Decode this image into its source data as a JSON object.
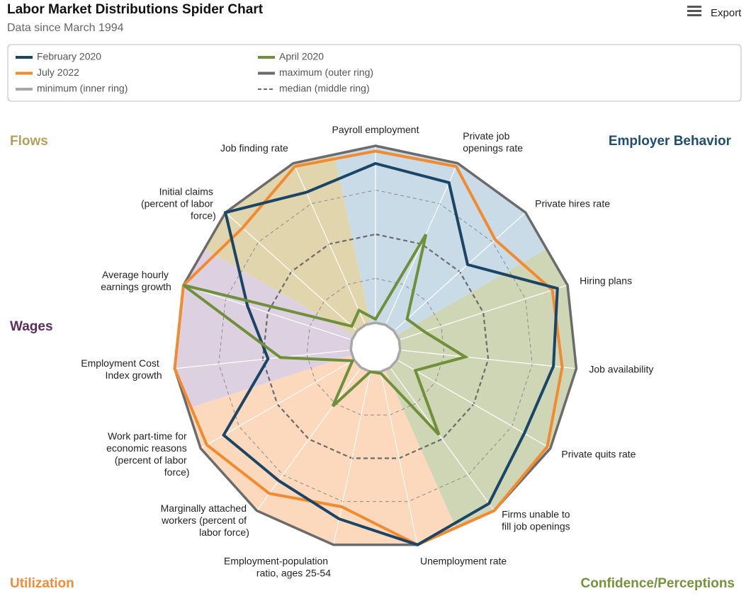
{
  "chart_data": {
    "type": "radar",
    "title": "Labor Market Distributions Spider Chart",
    "subtitle": "Data since March 1994",
    "export_label": "Export",
    "categories": [
      "Payroll employment",
      "Private job openings rate",
      "Private hires rate",
      "Hiring plans",
      "Job availability",
      "Private quits rate",
      "Firms unable to fill job openings",
      "Unemployment rate",
      "Employment-population ratio, ages 25-54",
      "Marginally attached workers (percent of labor force)",
      "Work part-time for economic reasons (percent of labor force)",
      "Employment Cost Index growth",
      "Average hourly earnings growth",
      "Initial claims (percent of labor force)",
      "Job finding rate"
    ],
    "rlim": [
      0,
      1
    ],
    "rticks": [
      0.25,
      0.5,
      0.75
    ],
    "rings": {
      "max": {
        "label": "maximum (outer ring)",
        "color": "#6b6b6b"
      },
      "min": {
        "label": "minimum (inner ring)",
        "color": "#a8a8a8"
      },
      "median": {
        "label": "median (middle ring)",
        "color": "#6b6b6b"
      }
    },
    "groups": [
      {
        "name": "Employer Behavior",
        "color": "#1f4e6e",
        "fill": "#c9dbe6",
        "categories": [
          "Payroll employment",
          "Private job openings rate",
          "Private hires rate"
        ]
      },
      {
        "name": "Confidence/Perceptions",
        "color": "#76923c",
        "fill": "#cfd6b5",
        "categories": [
          "Hiring plans",
          "Job availability",
          "Private quits rate",
          "Firms unable to fill job openings"
        ]
      },
      {
        "name": "Utilization",
        "color": "#f28c38",
        "fill": "#fcd9bd",
        "categories": [
          "Unemployment rate",
          "Employment-population ratio, ages 25-54",
          "Marginally attached workers (percent of labor force)",
          "Work part-time for economic reasons (percent of labor force)"
        ]
      },
      {
        "name": "Wages",
        "color": "#5a2d5e",
        "fill": "#ddd1e1",
        "categories": [
          "Employment Cost Index growth",
          "Average hourly earnings growth"
        ]
      },
      {
        "name": "Flows",
        "color": "#b5a05b",
        "fill": "#e1d5ae",
        "categories": [
          "Initial claims (percent of labor force)",
          "Job finding rate"
        ]
      }
    ],
    "series": [
      {
        "name": "February 2020",
        "color": "#1a4566",
        "values": [
          0.9,
          0.88,
          0.56,
          0.94,
          0.87,
          0.83,
          0.95,
          1.0,
          0.85,
          0.79,
          0.85,
          0.47,
          0.62,
          1.0,
          0.82
        ]
      },
      {
        "name": "April 2020",
        "color": "#6f8f3a",
        "values": [
          0.02,
          0.56,
          0.1,
          0.15,
          0.37,
          0.12,
          0.47,
          0.01,
          0.0,
          0.27,
          0.01,
          0.4,
          1.0,
          0.04,
          0.09
        ]
      },
      {
        "name": "July 2022",
        "color": "#f28a30",
        "values": [
          0.97,
          0.98,
          0.77,
          0.91,
          0.92,
          0.98,
          1.0,
          1.0,
          0.78,
          0.88,
          0.96,
          1.0,
          1.0,
          0.87,
          0.98
        ]
      }
    ]
  }
}
